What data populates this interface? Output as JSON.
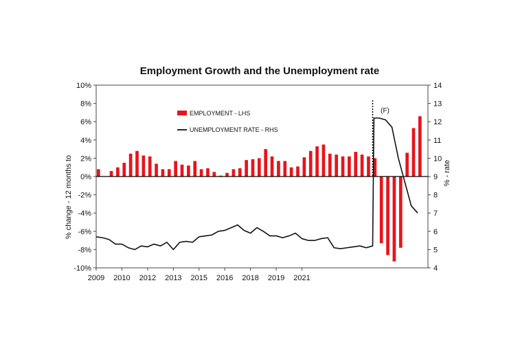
{
  "chart_data": {
    "type": "bar+line",
    "title": "Employment Growth and the Unemployment rate",
    "forecast_label": "(F)",
    "forecast_start": 2019.75,
    "ylabel_left": "% change - 12 months to",
    "ylabel_right": "% - rate",
    "ylim_left": [
      -10,
      10
    ],
    "ylim_right": [
      4,
      14
    ],
    "xlim": [
      2009.0,
      2021.9
    ],
    "left_ticks": [
      "10%",
      "8%",
      "6%",
      "4%",
      "2%",
      "0%",
      "-2%",
      "-4%",
      "-6%",
      "-8%",
      "-10%"
    ],
    "right_ticks": [
      "14",
      "13",
      "12",
      "11",
      "10",
      "9",
      "8",
      "7",
      "6",
      "5",
      "4"
    ],
    "x_ticks": [
      {
        "label": "2009",
        "x": 2009.0
      },
      {
        "label": "2010",
        "x": 2010.0
      },
      {
        "label": "2012",
        "x": 2011.0
      },
      {
        "label": "2013",
        "x": 2012.0
      },
      {
        "label": "2015",
        "x": 2013.0
      },
      {
        "label": "2016",
        "x": 2014.0
      },
      {
        "label": "2018",
        "x": 2015.0
      },
      {
        "label": "2019",
        "x": 2016.0
      },
      {
        "label": "2021",
        "x": 2017.0
      }
    ],
    "legend": [
      "EMPLOYMENT - LHS",
      "UNEMPLOYMENT RATE - RHS"
    ],
    "colors": {
      "employment": "#e8141b",
      "unemployment": "#111111"
    },
    "series": [
      {
        "name": "EMPLOYMENT - LHS",
        "kind": "bar",
        "x": [
          2009.0,
          2009.25,
          2009.5,
          2009.75,
          2010.0,
          2010.25,
          2010.5,
          2010.75,
          2011.0,
          2011.25,
          2011.5,
          2011.75,
          2012.0,
          2012.25,
          2012.5,
          2012.75,
          2013.0,
          2013.25,
          2013.5,
          2013.75,
          2014.0,
          2014.25,
          2014.5,
          2014.75,
          2015.0,
          2015.25,
          2015.5,
          2015.75,
          2016.0,
          2016.25,
          2016.5,
          2016.75,
          2017.0,
          2017.25,
          2017.5,
          2017.75,
          2018.0,
          2018.25,
          2018.5,
          2018.75,
          2019.0,
          2019.25,
          2019.5,
          2019.75,
          2020.0,
          2020.25,
          2020.5,
          2020.75,
          2021.0,
          2021.25,
          2021.5,
          2021.75
        ],
        "values": [
          0.8,
          0.0,
          0.6,
          1.0,
          1.5,
          2.5,
          2.8,
          2.3,
          2.2,
          1.4,
          0.8,
          0.8,
          1.7,
          1.3,
          1.2,
          1.7,
          0.8,
          0.9,
          0.5,
          0.1,
          0.4,
          0.8,
          0.9,
          1.8,
          1.9,
          2.0,
          3.0,
          2.2,
          1.7,
          1.7,
          1.0,
          1.1,
          2.1,
          2.8,
          3.3,
          3.5,
          2.5,
          2.4,
          2.2,
          2.2,
          2.7,
          2.4,
          2.2,
          2.0,
          -7.3,
          -8.6,
          -9.3,
          -7.8,
          2.6,
          5.3,
          6.6,
          0.0
        ]
      },
      {
        "name": "UNEMPLOYMENT RATE - RHS",
        "kind": "line",
        "x": [
          2009.0,
          2009.25,
          2009.5,
          2009.75,
          2010.0,
          2010.25,
          2010.5,
          2010.75,
          2011.0,
          2011.25,
          2011.5,
          2011.75,
          2012.0,
          2012.25,
          2012.5,
          2012.75,
          2013.0,
          2013.25,
          2013.5,
          2013.75,
          2014.0,
          2014.25,
          2014.5,
          2014.75,
          2015.0,
          2015.25,
          2015.5,
          2015.75,
          2016.0,
          2016.25,
          2016.5,
          2016.75,
          2017.0,
          2017.25,
          2017.5,
          2017.75,
          2018.0,
          2018.25,
          2018.5,
          2018.75,
          2019.0,
          2019.25,
          2019.5,
          2019.75,
          2019.8,
          2020.0,
          2020.25,
          2020.5,
          2020.75,
          2021.0,
          2021.25,
          2021.5
        ],
        "values": [
          5.7,
          5.65,
          5.55,
          5.3,
          5.3,
          5.1,
          5.0,
          5.2,
          5.15,
          5.3,
          5.2,
          5.4,
          5.0,
          5.4,
          5.45,
          5.4,
          5.7,
          5.75,
          5.8,
          6.0,
          6.05,
          6.2,
          6.35,
          6.05,
          5.9,
          6.2,
          6.0,
          5.75,
          5.75,
          5.65,
          5.75,
          5.9,
          5.6,
          5.5,
          5.5,
          5.6,
          5.65,
          5.1,
          5.05,
          5.1,
          5.15,
          5.2,
          5.1,
          5.2,
          12.2,
          12.2,
          12.1,
          11.7,
          10.0,
          8.7,
          7.4,
          7.0
        ]
      }
    ]
  }
}
